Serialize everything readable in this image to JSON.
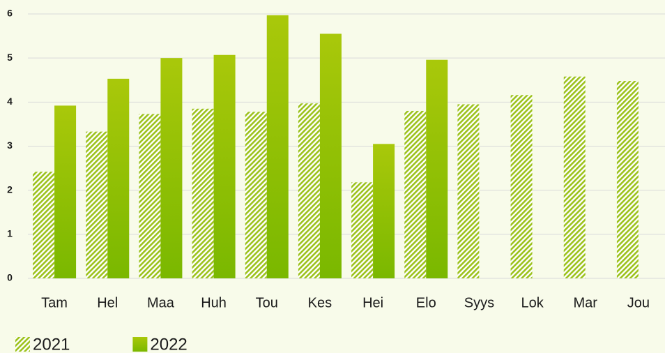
{
  "chart_data": {
    "type": "bar",
    "categories": [
      "Tam",
      "Hel",
      "Maa",
      "Huh",
      "Tou",
      "Kes",
      "Hei",
      "Elo",
      "Syys",
      "Lok",
      "Mar",
      "Jou"
    ],
    "series": [
      {
        "name": "2021",
        "color": "#9cc21c",
        "pattern": "hatch",
        "values": [
          2.42,
          3.33,
          3.73,
          3.85,
          3.78,
          3.97,
          2.18,
          3.8,
          3.95,
          4.16,
          4.58,
          4.48
        ]
      },
      {
        "name": "2022",
        "color": "#8cbf08",
        "pattern": "gradient",
        "values": [
          3.92,
          4.53,
          5.0,
          5.07,
          5.97,
          5.55,
          3.05,
          4.96,
          null,
          null,
          null,
          null
        ]
      }
    ],
    "ylim": [
      0,
      6
    ],
    "yticks": [
      0,
      1,
      2,
      3,
      4,
      5,
      6
    ],
    "grid": true,
    "legend": "bottom-left"
  }
}
